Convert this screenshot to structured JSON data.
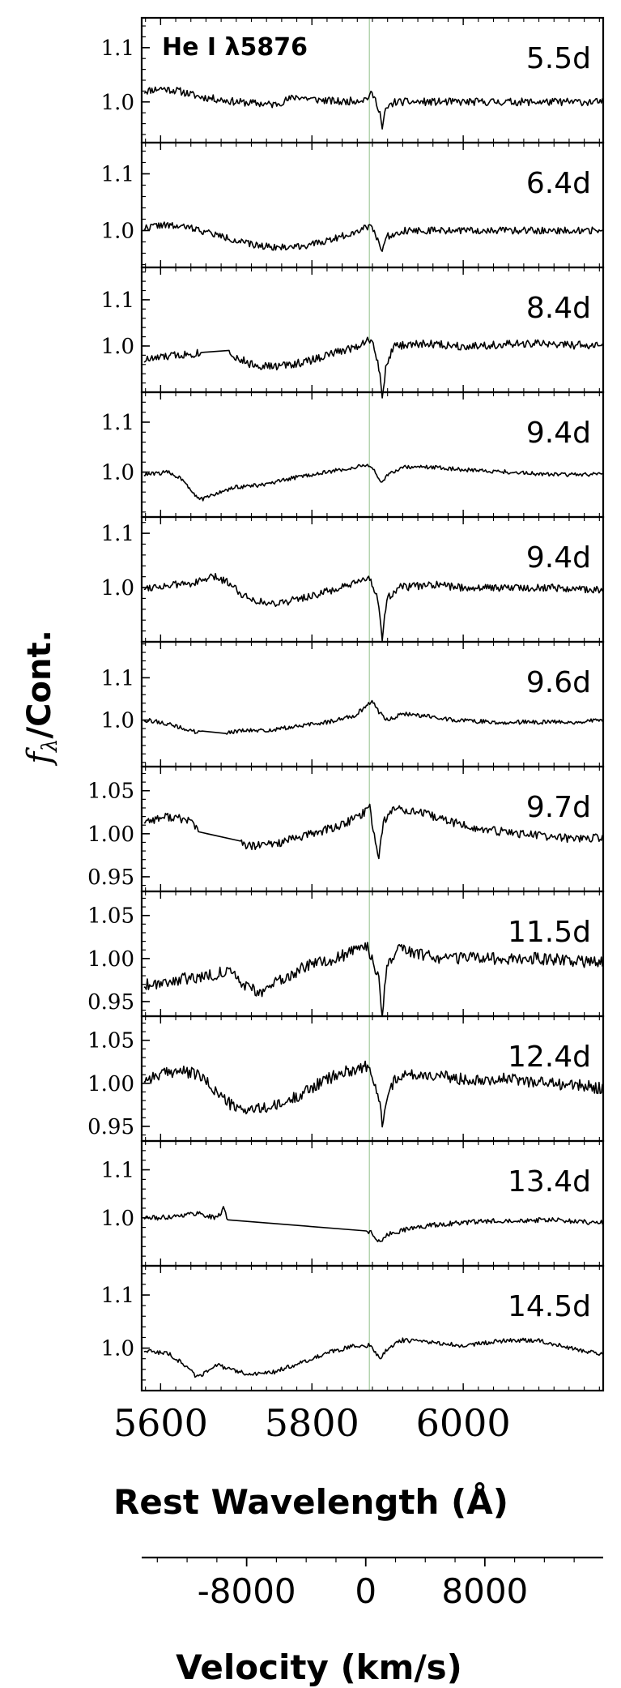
{
  "chart_data": {
    "type": "line",
    "annotation": "He I λ5876",
    "line_marker": {
      "wavelength": 5876,
      "color": "#b5d4b0"
    },
    "ylabel_f": "f",
    "ylabel_sub": "λ",
    "ylabel_rest": "/Cont.",
    "xlabel": "Rest Wavelength (Å)",
    "xlim": [
      5575,
      6185
    ],
    "xticks": [
      "5600",
      "5800",
      "6000"
    ],
    "xtick_values": [
      5600,
      5800,
      6000
    ],
    "velocity_axis": {
      "label": "Velocity (km/s)",
      "ticks": [
        "-8000",
        "0",
        "8000"
      ],
      "tick_values": [
        -8000,
        0,
        8000
      ],
      "range": [
        -15050,
        15950
      ]
    },
    "panels": [
      {
        "label": "5.5d",
        "ylim": [
          0.925,
          1.155
        ],
        "yticks": [
          "1.0",
          "1.1"
        ],
        "anchors": [
          [
            5580,
            1.02
          ],
          [
            5600,
            1.025
          ],
          [
            5625,
            1.02
          ],
          [
            5650,
            1.01
          ],
          [
            5700,
            1.0
          ],
          [
            5750,
            0.995
          ],
          [
            5780,
            1.01
          ],
          [
            5800,
            1.005
          ],
          [
            5840,
            1.0
          ],
          [
            5870,
            1.005
          ],
          [
            5880,
            1.015
          ],
          [
            5888,
            0.99
          ],
          [
            5893,
            0.97
          ],
          [
            5900,
            0.99
          ],
          [
            5910,
            1.0
          ],
          [
            5950,
            1.0
          ],
          [
            6000,
            1.0
          ],
          [
            6050,
            1.0
          ],
          [
            6100,
            1.0
          ],
          [
            6150,
            1.0
          ],
          [
            6180,
            1.0
          ]
        ],
        "dips": [
          [
            5893,
            -0.02,
            2
          ]
        ],
        "gap": null,
        "noise": 0.007,
        "seed": 11
      },
      {
        "label": "6.4d",
        "ylim": [
          0.935,
          1.155
        ],
        "yticks": [
          "1.0",
          "1.1"
        ],
        "anchors": [
          [
            5580,
            1.005
          ],
          [
            5600,
            1.01
          ],
          [
            5640,
            1.005
          ],
          [
            5680,
            0.99
          ],
          [
            5720,
            0.975
          ],
          [
            5760,
            0.97
          ],
          [
            5800,
            0.975
          ],
          [
            5840,
            0.99
          ],
          [
            5870,
            1.005
          ],
          [
            5878,
            1.01
          ],
          [
            5885,
            0.99
          ],
          [
            5892,
            0.975
          ],
          [
            5900,
            0.99
          ],
          [
            5920,
            1.0
          ],
          [
            5960,
            1.0
          ],
          [
            6000,
            1.0
          ],
          [
            6060,
            1.0
          ],
          [
            6120,
            1.0
          ],
          [
            6180,
            1.0
          ]
        ],
        "dips": [
          [
            5893,
            -0.015,
            2
          ]
        ],
        "gap": null,
        "noise": 0.006,
        "seed": 22
      },
      {
        "label": "8.4d",
        "ylim": [
          0.9,
          1.17
        ],
        "yticks": [
          "1.0",
          "1.1"
        ],
        "anchors": [
          [
            5580,
            0.97
          ],
          [
            5620,
            0.98
          ],
          [
            5650,
            0.985
          ],
          [
            5690,
            0.99
          ],
          [
            5700,
            0.975
          ],
          [
            5720,
            0.96
          ],
          [
            5750,
            0.955
          ],
          [
            5790,
            0.965
          ],
          [
            5830,
            0.985
          ],
          [
            5860,
            1.0
          ],
          [
            5875,
            1.015
          ],
          [
            5882,
            1.0
          ],
          [
            5888,
            0.96
          ],
          [
            5893,
            0.91
          ],
          [
            5900,
            0.97
          ],
          [
            5910,
            1.0
          ],
          [
            5950,
            1.005
          ],
          [
            6000,
            1.0
          ],
          [
            6100,
            1.005
          ],
          [
            6180,
            1.0
          ]
        ],
        "dips": [
          [
            5893,
            -0.03,
            2
          ]
        ],
        "gap": [
          5655,
          5690
        ],
        "noise": 0.009,
        "seed": 33
      },
      {
        "label": "9.4d",
        "ylim": [
          0.91,
          1.16
        ],
        "yticks": [
          "1.0",
          "1.1"
        ],
        "anchors": [
          [
            5580,
            0.995
          ],
          [
            5610,
            1.0
          ],
          [
            5630,
            0.985
          ],
          [
            5645,
            0.955
          ],
          [
            5655,
            0.945
          ],
          [
            5670,
            0.955
          ],
          [
            5700,
            0.97
          ],
          [
            5740,
            0.975
          ],
          [
            5780,
            0.99
          ],
          [
            5820,
            1.0
          ],
          [
            5860,
            1.01
          ],
          [
            5872,
            1.015
          ],
          [
            5880,
            1.01
          ],
          [
            5886,
            0.99
          ],
          [
            5892,
            0.975
          ],
          [
            5900,
            0.995
          ],
          [
            5920,
            1.01
          ],
          [
            5960,
            1.01
          ],
          [
            6000,
            1.005
          ],
          [
            6060,
            1.0
          ],
          [
            6120,
            0.995
          ],
          [
            6180,
            0.995
          ]
        ],
        "dips": [],
        "gap": null,
        "noise": 0.004,
        "seed": 44
      },
      {
        "label": "9.4d",
        "ylim": [
          0.9,
          1.13
        ],
        "yticks": [
          "1.0",
          "1.1"
        ],
        "anchors": [
          [
            5580,
            1.0
          ],
          [
            5620,
            1.005
          ],
          [
            5650,
            1.01
          ],
          [
            5670,
            1.02
          ],
          [
            5690,
            1.01
          ],
          [
            5710,
            0.985
          ],
          [
            5740,
            0.97
          ],
          [
            5770,
            0.975
          ],
          [
            5800,
            0.985
          ],
          [
            5840,
            1.0
          ],
          [
            5865,
            1.01
          ],
          [
            5875,
            1.02
          ],
          [
            5882,
            1.0
          ],
          [
            5888,
            0.975
          ],
          [
            5893,
            0.92
          ],
          [
            5900,
            0.98
          ],
          [
            5915,
            1.0
          ],
          [
            5960,
            1.005
          ],
          [
            6000,
            1.0
          ],
          [
            6060,
            1.0
          ],
          [
            6120,
            1.0
          ],
          [
            6180,
            0.995
          ]
        ],
        "dips": [
          [
            5893,
            -0.025,
            2
          ]
        ],
        "gap": null,
        "noise": 0.007,
        "seed": 55
      },
      {
        "label": "9.6d",
        "ylim": [
          0.89,
          1.185
        ],
        "yticks": [
          "1.0",
          "1.1"
        ],
        "anchors": [
          [
            5580,
            1.0
          ],
          [
            5600,
            0.995
          ],
          [
            5630,
            0.98
          ],
          [
            5650,
            0.97
          ],
          [
            5680,
            0.97
          ],
          [
            5710,
            0.975
          ],
          [
            5740,
            0.975
          ],
          [
            5780,
            0.985
          ],
          [
            5820,
            0.995
          ],
          [
            5855,
            1.01
          ],
          [
            5870,
            1.03
          ],
          [
            5880,
            1.045
          ],
          [
            5888,
            1.02
          ],
          [
            5900,
            1.0
          ],
          [
            5920,
            1.015
          ],
          [
            5950,
            1.01
          ],
          [
            5990,
            1.0
          ],
          [
            6040,
            0.995
          ],
          [
            6100,
            0.995
          ],
          [
            6150,
            0.995
          ],
          [
            6180,
            1.0
          ]
        ],
        "dips": [],
        "gap": [
          5655,
          5685
        ],
        "noise": 0.005,
        "seed": 66
      },
      {
        "label": "9.7d",
        "ylim": [
          0.933,
          1.078
        ],
        "yticks": [
          "0.95",
          "1.00",
          "1.05"
        ],
        "anchors": [
          [
            5580,
            1.015
          ],
          [
            5610,
            1.02
          ],
          [
            5640,
            1.015
          ],
          [
            5650,
            1.005
          ],
          [
            5700,
            0.99
          ],
          [
            5720,
            0.985
          ],
          [
            5760,
            0.99
          ],
          [
            5800,
            1.0
          ],
          [
            5840,
            1.01
          ],
          [
            5870,
            1.025
          ],
          [
            5876,
            1.035
          ],
          [
            5882,
            1.0
          ],
          [
            5888,
            0.985
          ],
          [
            5895,
            1.015
          ],
          [
            5910,
            1.03
          ],
          [
            5940,
            1.025
          ],
          [
            5980,
            1.015
          ],
          [
            6020,
            1.005
          ],
          [
            6080,
            1.0
          ],
          [
            6130,
            0.995
          ],
          [
            6180,
            0.995
          ]
        ],
        "dips": [
          [
            5888,
            -0.015,
            3
          ]
        ],
        "gap": [
          5650,
          5705
        ],
        "noise": 0.005,
        "seed": 77
      },
      {
        "label": "11.5d",
        "ylim": [
          0.933,
          1.078
        ],
        "yticks": [
          "0.95",
          "1.00",
          "1.05"
        ],
        "anchors": [
          [
            5580,
            0.97
          ],
          [
            5620,
            0.975
          ],
          [
            5660,
            0.98
          ],
          [
            5690,
            0.985
          ],
          [
            5710,
            0.97
          ],
          [
            5730,
            0.96
          ],
          [
            5760,
            0.975
          ],
          [
            5790,
            0.99
          ],
          [
            5830,
            1.0
          ],
          [
            5860,
            1.01
          ],
          [
            5872,
            1.015
          ],
          [
            5880,
            1.0
          ],
          [
            5888,
            0.975
          ],
          [
            5893,
            0.955
          ],
          [
            5900,
            0.99
          ],
          [
            5915,
            1.01
          ],
          [
            5940,
            1.005
          ],
          [
            5980,
            1.0
          ],
          [
            6040,
            1.0
          ],
          [
            6100,
            1.0
          ],
          [
            6180,
            0.995
          ]
        ],
        "dips": [
          [
            5893,
            -0.02,
            2
          ]
        ],
        "gap": null,
        "noise": 0.007,
        "seed": 88
      },
      {
        "label": "12.4d",
        "ylim": [
          0.933,
          1.078
        ],
        "yticks": [
          "0.95",
          "1.00",
          "1.05"
        ],
        "anchors": [
          [
            5580,
            1.005
          ],
          [
            5620,
            1.015
          ],
          [
            5650,
            1.01
          ],
          [
            5680,
            0.985
          ],
          [
            5700,
            0.97
          ],
          [
            5730,
            0.97
          ],
          [
            5760,
            0.975
          ],
          [
            5790,
            0.99
          ],
          [
            5820,
            1.005
          ],
          [
            5850,
            1.015
          ],
          [
            5872,
            1.02
          ],
          [
            5880,
            1.005
          ],
          [
            5888,
            0.985
          ],
          [
            5893,
            0.965
          ],
          [
            5900,
            0.99
          ],
          [
            5915,
            1.01
          ],
          [
            5950,
            1.01
          ],
          [
            6000,
            1.005
          ],
          [
            6060,
            1.005
          ],
          [
            6120,
            1.0
          ],
          [
            6180,
            0.995
          ]
        ],
        "dips": [
          [
            5893,
            -0.015,
            2
          ]
        ],
        "gap": null,
        "noise": 0.007,
        "seed": 99
      },
      {
        "label": "13.4d",
        "ylim": [
          0.9,
          1.16
        ],
        "yticks": [
          "1.0",
          "1.1"
        ],
        "anchors": [
          [
            5580,
            1.0
          ],
          [
            5600,
            1.0
          ],
          [
            5625,
            1.005
          ],
          [
            5650,
            1.01
          ],
          [
            5670,
            1.0
          ],
          [
            5678,
            1.005
          ],
          [
            5684,
            1.025
          ],
          [
            5690,
            0.985
          ],
          [
            5872,
            0.97
          ],
          [
            5878,
            0.97
          ],
          [
            5886,
            0.955
          ],
          [
            5893,
            0.95
          ],
          [
            5900,
            0.965
          ],
          [
            5920,
            0.975
          ],
          [
            5960,
            0.985
          ],
          [
            6000,
            0.99
          ],
          [
            6060,
            0.995
          ],
          [
            6120,
            0.995
          ],
          [
            6180,
            0.99
          ]
        ],
        "dips": [],
        "gap": [
          5690,
          5872
        ],
        "noise": 0.005,
        "seed": 111
      },
      {
        "label": "14.5d",
        "ylim": [
          0.92,
          1.155
        ],
        "yticks": [
          "1.0",
          "1.1"
        ],
        "anchors": [
          [
            5580,
            0.995
          ],
          [
            5610,
            0.99
          ],
          [
            5635,
            0.965
          ],
          [
            5648,
            0.945
          ],
          [
            5660,
            0.955
          ],
          [
            5672,
            0.97
          ],
          [
            5690,
            0.96
          ],
          [
            5720,
            0.95
          ],
          [
            5750,
            0.955
          ],
          [
            5790,
            0.975
          ],
          [
            5830,
            0.995
          ],
          [
            5860,
            1.005
          ],
          [
            5878,
            1.005
          ],
          [
            5885,
            0.99
          ],
          [
            5890,
            0.98
          ],
          [
            5900,
            1.0
          ],
          [
            5920,
            1.015
          ],
          [
            5960,
            1.01
          ],
          [
            6000,
            1.005
          ],
          [
            6060,
            1.015
          ],
          [
            6100,
            1.015
          ],
          [
            6140,
            1.0
          ],
          [
            6180,
            0.99
          ]
        ],
        "dips": [],
        "gap": null,
        "noise": 0.004,
        "seed": 122
      }
    ]
  }
}
